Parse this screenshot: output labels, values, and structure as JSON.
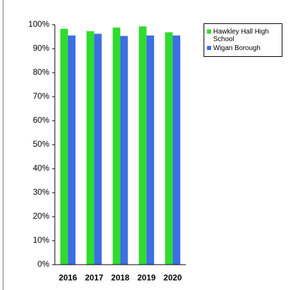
{
  "chart_data": {
    "type": "bar",
    "categories": [
      "2016",
      "2017",
      "2018",
      "2019",
      "2020"
    ],
    "series": [
      {
        "name": "Hawkley Hall High School",
        "color": "#2fdc2f",
        "values": [
          98.3,
          97.3,
          98.8,
          99.3,
          96.8
        ]
      },
      {
        "name": "Wigan Borough",
        "color": "#3b6fe2",
        "values": [
          95.5,
          96.2,
          95.3,
          95.5,
          95.5
        ]
      }
    ],
    "ylim": [
      0,
      100
    ],
    "yticks": [
      {
        "value": 0,
        "label": "0%"
      },
      {
        "value": 10,
        "label": "10%"
      },
      {
        "value": 20,
        "label": "20%"
      },
      {
        "value": 30,
        "label": "30%"
      },
      {
        "value": 40,
        "label": "40%"
      },
      {
        "value": 50,
        "label": "50%"
      },
      {
        "value": 60,
        "label": "60%"
      },
      {
        "value": 70,
        "label": "70%"
      },
      {
        "value": 80,
        "label": "80%"
      },
      {
        "value": 90,
        "label": "90%"
      },
      {
        "value": 100,
        "label": "100%"
      }
    ],
    "grid": false,
    "legend": "right"
  }
}
